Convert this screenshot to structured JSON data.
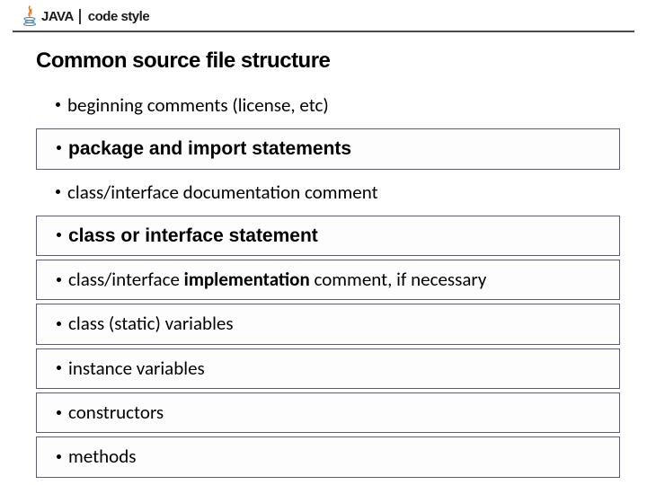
{
  "header": {
    "logo_name": "java-logo",
    "title": "JAVA",
    "subtitle": "code style"
  },
  "section_title": "Common source file structure",
  "items": [
    {
      "prefix": "beginning comments  ",
      "bold": "",
      "suffix": "(license, etc)",
      "boxed": false,
      "all_bold": false
    },
    {
      "prefix": "",
      "bold": "package and import statements",
      "suffix": "",
      "boxed": true,
      "all_bold": true
    },
    {
      "prefix": "class/interface documentation comment",
      "bold": "",
      "suffix": "",
      "boxed": false,
      "all_bold": false
    },
    {
      "prefix": "",
      "bold": "class or interface statement",
      "suffix": "",
      "boxed": true,
      "all_bold": true
    },
    {
      "prefix": "class/interface ",
      "bold": "implementation",
      "suffix": " comment, if necessary",
      "boxed": true,
      "all_bold": false
    },
    {
      "prefix": "class (static) variables",
      "bold": "",
      "suffix": "",
      "boxed": true,
      "all_bold": false
    },
    {
      "prefix": "instance variables",
      "bold": "",
      "suffix": "",
      "boxed": true,
      "all_bold": false
    },
    {
      "prefix": "constructors",
      "bold": "",
      "suffix": "",
      "boxed": true,
      "all_bold": false
    },
    {
      "prefix": "methods",
      "bold": "",
      "suffix": "",
      "boxed": true,
      "all_bold": false
    }
  ],
  "colors": {
    "border": "#5a5a7a",
    "text": "#000000",
    "header_rule": "#4a4a4a",
    "background": "#ffffff"
  },
  "fonts": {
    "title_size_pt": 24,
    "item_size_pt": 21,
    "header_size_pt": 15
  }
}
